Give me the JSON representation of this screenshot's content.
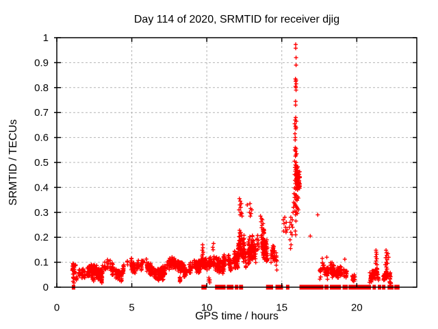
{
  "figure": {
    "title": "Day 114 of 2020, SRMTID for receiver djig",
    "xlabel": "GPS time / hours",
    "ylabel": "SRMTID / TECUs",
    "bg_color": "#ffffff",
    "marker_color": "#ff0000",
    "grid_color": "#b4b4b4",
    "axis_color": "#000000"
  },
  "chart_data": {
    "type": "scatter",
    "title": "Day 114 of 2020, SRMTID for receiver djig",
    "xlabel": "GPS time / hours",
    "ylabel": "SRMTID / TECUs",
    "xlim": [
      0,
      24
    ],
    "ylim": [
      0,
      1
    ],
    "xticks": {
      "values": [
        0,
        5,
        10,
        15,
        20
      ],
      "labels": [
        "0",
        "5",
        "10",
        "15",
        "20"
      ]
    },
    "yticks": {
      "values": [
        0,
        0.1,
        0.2,
        0.3,
        0.4,
        0.5,
        0.6,
        0.7,
        0.8,
        0.9,
        1
      ],
      "labels": [
        "0",
        "0.1",
        "0.2",
        "0.3",
        "0.4",
        "0.5",
        "0.6",
        "0.7",
        "0.8",
        "0.9",
        "1"
      ]
    },
    "grid": "dashed-major",
    "legend": "none",
    "marker": "plus",
    "marker_color": "#ff0000",
    "seed": 7,
    "notable_points": [
      [
        15.93,
        0.973
      ],
      [
        15.93,
        0.958
      ],
      [
        15.95,
        0.92
      ],
      [
        15.95,
        0.89
      ],
      [
        15.91,
        0.835
      ],
      [
        15.95,
        0.83
      ],
      [
        15.93,
        0.825
      ],
      [
        15.96,
        0.815
      ],
      [
        15.92,
        0.805
      ],
      [
        15.94,
        0.8
      ],
      [
        15.95,
        0.79
      ],
      [
        15.92,
        0.745
      ],
      [
        15.92,
        0.73
      ],
      [
        15.93,
        0.68
      ],
      [
        15.89,
        0.67
      ],
      [
        15.97,
        0.665
      ],
      [
        15.86,
        0.655
      ],
      [
        15.91,
        0.645
      ],
      [
        15.95,
        0.64
      ],
      [
        15.93,
        0.635
      ],
      [
        15.88,
        0.615
      ],
      [
        15.9,
        0.6
      ],
      [
        15.89,
        0.59
      ],
      [
        15.9,
        0.56
      ],
      [
        15.95,
        0.555
      ],
      [
        15.87,
        0.55
      ],
      [
        15.92,
        0.545
      ],
      [
        15.99,
        0.535
      ],
      [
        15.94,
        0.53
      ],
      [
        15.91,
        0.525
      ],
      [
        15.85,
        0.505
      ],
      [
        15.96,
        0.5
      ],
      [
        15.91,
        0.49
      ],
      [
        15.96,
        0.487
      ],
      [
        15.88,
        0.48
      ],
      [
        16.0,
        0.477
      ],
      [
        15.93,
        0.472
      ],
      [
        15.9,
        0.465
      ],
      [
        15.97,
        0.458
      ],
      [
        15.86,
        0.452
      ],
      [
        15.94,
        0.447
      ],
      [
        16.0,
        0.44
      ],
      [
        15.98,
        0.435
      ],
      [
        15.88,
        0.428
      ],
      [
        15.95,
        0.422
      ],
      [
        15.91,
        0.415
      ],
      [
        16.02,
        0.408
      ],
      [
        15.97,
        0.402
      ],
      [
        15.85,
        0.398
      ],
      [
        15.93,
        0.393
      ],
      [
        16.05,
        0.39
      ],
      [
        15.82,
        0.375
      ],
      [
        15.9,
        0.37
      ],
      [
        15.98,
        0.368
      ],
      [
        16.06,
        0.362
      ],
      [
        15.86,
        0.36
      ],
      [
        16.1,
        0.357
      ],
      [
        15.94,
        0.352
      ],
      [
        16.02,
        0.348
      ],
      [
        15.8,
        0.34
      ],
      [
        15.85,
        0.335
      ],
      [
        15.9,
        0.33
      ],
      [
        15.95,
        0.325
      ],
      [
        16.0,
        0.32
      ],
      [
        16.05,
        0.315
      ],
      [
        16.1,
        0.31
      ],
      [
        15.88,
        0.305
      ],
      [
        15.96,
        0.3
      ],
      [
        16.04,
        0.295
      ],
      [
        15.92,
        0.29
      ],
      [
        15.94,
        0.265
      ],
      [
        15.9,
        0.225
      ],
      [
        15.93,
        0.21
      ],
      [
        15.1,
        0.27
      ],
      [
        15.15,
        0.255
      ],
      [
        15.2,
        0.28
      ],
      [
        15.25,
        0.24
      ],
      [
        15.3,
        0.26
      ],
      [
        15.35,
        0.23
      ],
      [
        15.12,
        0.225
      ],
      [
        15.28,
        0.22
      ],
      [
        15.5,
        0.24
      ],
      [
        15.55,
        0.26
      ],
      [
        15.6,
        0.28
      ],
      [
        15.65,
        0.25
      ],
      [
        15.7,
        0.27
      ],
      [
        15.75,
        0.3
      ],
      [
        15.78,
        0.32
      ],
      [
        15.6,
        0.22
      ],
      [
        15.68,
        0.21
      ],
      [
        15.72,
        0.24
      ],
      [
        15.55,
        0.19
      ],
      [
        15.62,
        0.17
      ],
      [
        15.58,
        0.155
      ],
      [
        16.9,
        0.205
      ],
      [
        17.4,
        0.29
      ],
      [
        9.72,
        0.17
      ],
      [
        9.74,
        0.158
      ],
      [
        9.7,
        0.148
      ],
      [
        9.76,
        0.14
      ],
      [
        9.73,
        0.132
      ],
      [
        9.68,
        0.125
      ],
      [
        10.45,
        0.175
      ],
      [
        10.4,
        0.16
      ],
      [
        10.42,
        0.15
      ],
      [
        12.18,
        0.355
      ],
      [
        12.23,
        0.345
      ],
      [
        12.2,
        0.33
      ],
      [
        12.26,
        0.32
      ],
      [
        12.3,
        0.335
      ],
      [
        12.15,
        0.31
      ],
      [
        12.28,
        0.3
      ],
      [
        12.33,
        0.295
      ],
      [
        12.22,
        0.29
      ],
      [
        12.35,
        0.285
      ],
      [
        12.88,
        0.335
      ],
      [
        12.92,
        0.315
      ],
      [
        12.7,
        0.33
      ],
      [
        12.85,
        0.3
      ],
      [
        12.95,
        0.295
      ],
      [
        12.9,
        0.285
      ],
      [
        13.0,
        0.31
      ],
      [
        13.58,
        0.285
      ],
      [
        13.65,
        0.275
      ],
      [
        13.7,
        0.27
      ],
      [
        13.62,
        0.262
      ],
      [
        13.75,
        0.255
      ],
      [
        13.68,
        0.248
      ],
      [
        21.28,
        0.148
      ],
      [
        21.3,
        0.14
      ],
      [
        21.32,
        0.132
      ],
      [
        21.27,
        0.122
      ],
      [
        21.33,
        0.114
      ],
      [
        21.29,
        0.105
      ],
      [
        21.26,
        0.095
      ],
      [
        21.35,
        0.09
      ],
      [
        21.95,
        0.148
      ],
      [
        21.98,
        0.138
      ],
      [
        22.0,
        0.128
      ],
      [
        21.93,
        0.118
      ],
      [
        22.02,
        0.11
      ],
      [
        21.97,
        0.1
      ],
      [
        22.05,
        0.095
      ],
      [
        21.9,
        0.09
      ],
      [
        22.08,
        0.135
      ],
      [
        22.12,
        0.12
      ],
      [
        19.2,
        0.112
      ],
      [
        18.0,
        0.12
      ],
      [
        17.7,
        0.115
      ]
    ],
    "dense_bands": [
      {
        "name": "morning-baseline",
        "x0": 0.95,
        "x1": 10.55,
        "n": 1000,
        "spread": 0.027,
        "anchors": [
          [
            0.95,
            0.075
          ],
          [
            1.3,
            0.08
          ],
          [
            1.6,
            0.055
          ],
          [
            1.9,
            0.048
          ],
          [
            2.2,
            0.065
          ],
          [
            2.5,
            0.072
          ],
          [
            2.85,
            0.05
          ],
          [
            3.15,
            0.075
          ],
          [
            3.45,
            0.095
          ],
          [
            3.7,
            0.075
          ],
          [
            4.0,
            0.055
          ],
          [
            4.3,
            0.05
          ],
          [
            4.65,
            0.085
          ],
          [
            4.95,
            0.095
          ],
          [
            5.2,
            0.075
          ],
          [
            5.5,
            0.085
          ],
          [
            5.8,
            0.1
          ],
          [
            6.1,
            0.08
          ],
          [
            6.45,
            0.06
          ],
          [
            6.8,
            0.05
          ],
          [
            7.1,
            0.065
          ],
          [
            7.45,
            0.09
          ],
          [
            7.75,
            0.1
          ],
          [
            8.05,
            0.09
          ],
          [
            8.35,
            0.08
          ],
          [
            8.6,
            0.055
          ],
          [
            8.9,
            0.075
          ],
          [
            9.2,
            0.09
          ],
          [
            9.5,
            0.08
          ],
          [
            9.75,
            0.1
          ],
          [
            10.0,
            0.09
          ],
          [
            10.3,
            0.1
          ],
          [
            10.55,
            0.1
          ]
        ]
      },
      {
        "name": "morning-low-outliers",
        "x0": 1.0,
        "x1": 10.5,
        "n": 50,
        "spread": 0.018,
        "anchors": [
          [
            1.0,
            0.03
          ],
          [
            10.5,
            0.03
          ]
        ]
      },
      {
        "name": "band-1030-1110",
        "x0": 10.55,
        "x1": 11.1,
        "n": 55,
        "spread": 0.035,
        "anchors": [
          [
            10.55,
            0.09
          ],
          [
            11.1,
            0.085
          ]
        ]
      },
      {
        "name": "band-1110-1140",
        "x0": 11.1,
        "x1": 11.65,
        "n": 60,
        "spread": 0.04,
        "anchors": [
          [
            11.1,
            0.1
          ],
          [
            11.4,
            0.105
          ],
          [
            11.65,
            0.095
          ]
        ]
      },
      {
        "name": "band-1140-1205",
        "x0": 11.7,
        "x1": 12.1,
        "n": 55,
        "spread": 0.045,
        "anchors": [
          [
            11.7,
            0.095
          ],
          [
            11.95,
            0.115
          ],
          [
            12.1,
            0.11
          ]
        ]
      },
      {
        "name": "cluster-1215",
        "x0": 12.05,
        "x1": 12.5,
        "n": 95,
        "spread": 0.065,
        "anchors": [
          [
            12.05,
            0.13
          ],
          [
            12.2,
            0.185
          ],
          [
            12.35,
            0.17
          ],
          [
            12.5,
            0.14
          ]
        ]
      },
      {
        "name": "cluster-1250",
        "x0": 12.55,
        "x1": 13.28,
        "n": 115,
        "spread": 0.06,
        "anchors": [
          [
            12.55,
            0.12
          ],
          [
            12.8,
            0.15
          ],
          [
            13.0,
            0.155
          ],
          [
            13.28,
            0.14
          ]
        ]
      },
      {
        "name": "cluster-1340",
        "x0": 13.3,
        "x1": 14.05,
        "n": 100,
        "spread": 0.065,
        "anchors": [
          [
            13.3,
            0.15
          ],
          [
            13.6,
            0.185
          ],
          [
            13.8,
            0.175
          ],
          [
            14.05,
            0.13
          ]
        ]
      },
      {
        "name": "cluster-1425",
        "x0": 14.25,
        "x1": 14.68,
        "n": 40,
        "spread": 0.045,
        "anchors": [
          [
            14.25,
            0.115
          ],
          [
            14.45,
            0.14
          ],
          [
            14.68,
            0.105
          ]
        ]
      },
      {
        "name": "spike-base",
        "x0": 15.82,
        "x1": 16.22,
        "n": 55,
        "spread": 0.055,
        "anchors": [
          [
            15.82,
            0.43
          ],
          [
            16.02,
            0.44
          ],
          [
            16.22,
            0.42
          ]
        ]
      },
      {
        "name": "evening-1",
        "x0": 17.5,
        "x1": 18.55,
        "n": 85,
        "spread": 0.032,
        "anchors": [
          [
            17.5,
            0.055
          ],
          [
            17.75,
            0.08
          ],
          [
            18.0,
            0.06
          ],
          [
            18.3,
            0.075
          ],
          [
            18.55,
            0.055
          ]
        ]
      },
      {
        "name": "evening-2",
        "x0": 18.6,
        "x1": 19.4,
        "n": 55,
        "spread": 0.03,
        "anchors": [
          [
            18.6,
            0.055
          ],
          [
            19.0,
            0.065
          ],
          [
            19.4,
            0.05
          ]
        ]
      },
      {
        "name": "evening-3",
        "x0": 19.55,
        "x1": 20.0,
        "n": 16,
        "spread": 0.015,
        "anchors": [
          [
            19.55,
            0.04
          ],
          [
            20.0,
            0.035
          ]
        ]
      },
      {
        "name": "evening-4",
        "x0": 20.75,
        "x1": 21.45,
        "n": 75,
        "spread": 0.028,
        "anchors": [
          [
            20.75,
            0.03
          ],
          [
            21.0,
            0.04
          ],
          [
            21.2,
            0.055
          ],
          [
            21.35,
            0.06
          ],
          [
            21.45,
            0.045
          ]
        ]
      },
      {
        "name": "evening-5",
        "x0": 21.75,
        "x1": 22.3,
        "n": 60,
        "spread": 0.028,
        "anchors": [
          [
            21.75,
            0.035
          ],
          [
            21.95,
            0.055
          ],
          [
            22.1,
            0.05
          ],
          [
            22.3,
            0.035
          ]
        ]
      }
    ],
    "zero_value_segments": [
      [
        1.0,
        1.12
      ],
      [
        9.64,
        9.7
      ],
      [
        9.76,
        9.82
      ],
      [
        10.55,
        11.25
      ],
      [
        11.33,
        11.78
      ],
      [
        11.87,
        12.08
      ],
      [
        12.15,
        12.42
      ],
      [
        13.95,
        14.42
      ],
      [
        14.58,
        15.08
      ],
      [
        15.28,
        15.48
      ],
      [
        16.18,
        17.78
      ],
      [
        17.84,
        18.12
      ],
      [
        18.2,
        18.95
      ],
      [
        19.05,
        19.4
      ],
      [
        19.45,
        20.95
      ],
      [
        21.05,
        21.18
      ],
      [
        21.4,
        21.56
      ],
      [
        21.68,
        21.88
      ],
      [
        22.05,
        22.45
      ],
      [
        22.5,
        22.85
      ]
    ]
  }
}
